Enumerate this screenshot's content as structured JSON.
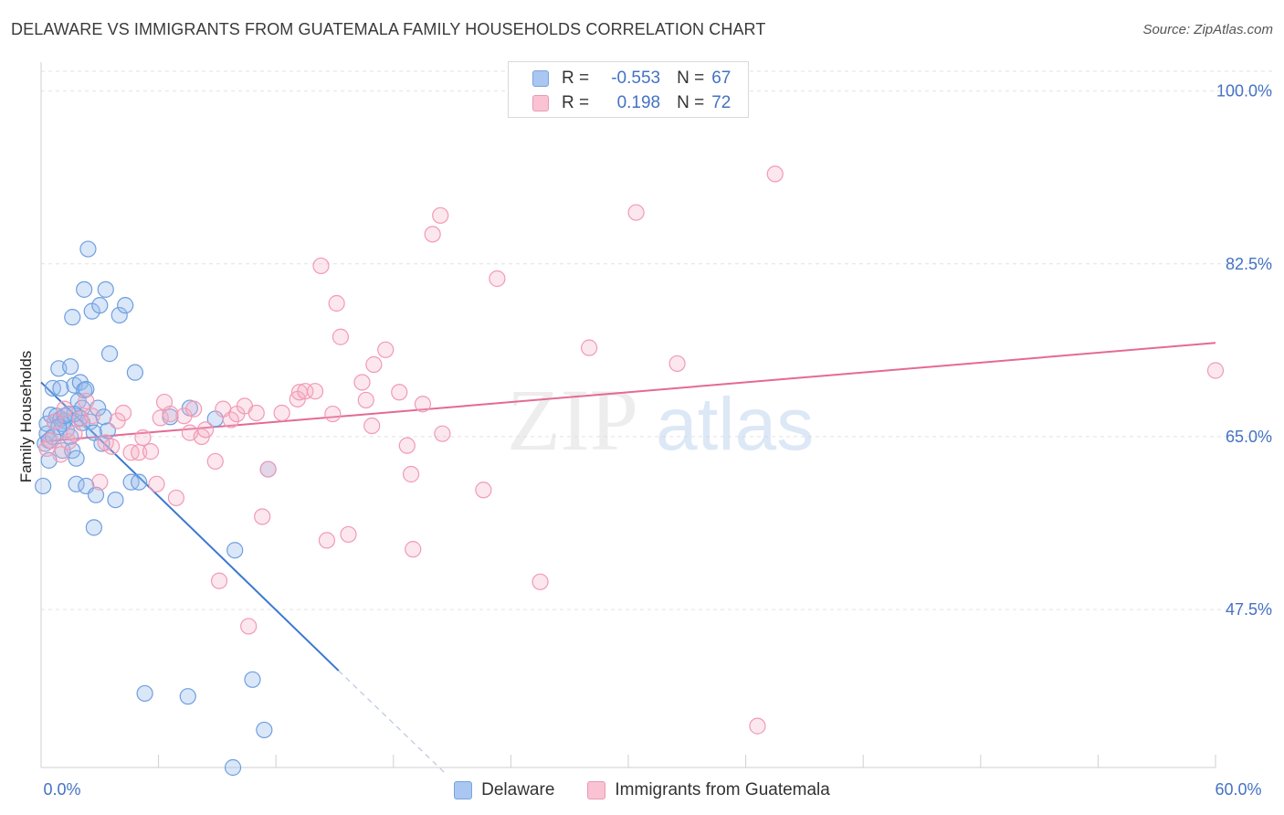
{
  "title": "DELAWARE VS IMMIGRANTS FROM GUATEMALA FAMILY HOUSEHOLDS CORRELATION CHART",
  "source": "Source: ZipAtlas.com",
  "watermark": {
    "zip": "ZIP",
    "atlas": "atlas"
  },
  "legend_top": {
    "rows": [
      {
        "r_label": "R =",
        "r_value": "-0.553",
        "n_label": "N =",
        "n_value": "67",
        "color": "#a9c7f0",
        "border": "#7aa3dd"
      },
      {
        "r_label": "R =",
        "r_value": "0.198",
        "n_label": "N =",
        "n_value": "72",
        "color": "#f9c3d3",
        "border": "#e79ab3"
      }
    ]
  },
  "legend_bottom": {
    "delaware": "Delaware",
    "guatemala": "Immigrants from Guatemala"
  },
  "chart_data": {
    "type": "scatter",
    "ylabel": "Family Households",
    "xlim": [
      0,
      60
    ],
    "ylim": [
      31.5,
      102
    ],
    "x_tick_labels": [
      {
        "value": 0,
        "label": "0.0%"
      },
      {
        "value": 60,
        "label": "60.0%"
      }
    ],
    "y_tick_labels": [
      {
        "value": 100,
        "label": "100.0%"
      },
      {
        "value": 82.5,
        "label": "82.5%"
      },
      {
        "value": 65,
        "label": "65.0%"
      },
      {
        "value": 47.5,
        "label": "47.5%"
      }
    ],
    "series": [
      {
        "name": "Delaware",
        "color": "#6f9fe0",
        "trend": {
          "x0": 0,
          "y0": 70.5,
          "x1": 15.2,
          "y1": 41.3,
          "dashed_to_x": 20.6,
          "dashed_to_y": 31.0
        },
        "points": [
          [
            0.1,
            60.0
          ],
          [
            0.2,
            64.3
          ],
          [
            0.3,
            65.3
          ],
          [
            0.3,
            66.3
          ],
          [
            0.4,
            62.6
          ],
          [
            0.4,
            64.6
          ],
          [
            0.5,
            67.2
          ],
          [
            0.6,
            69.9
          ],
          [
            0.7,
            66.5
          ],
          [
            0.8,
            67.1
          ],
          [
            0.9,
            71.9
          ],
          [
            1.0,
            69.9
          ],
          [
            1.0,
            66.8
          ],
          [
            1.1,
            63.6
          ],
          [
            1.2,
            66.6
          ],
          [
            1.3,
            65.7
          ],
          [
            1.4,
            67.3
          ],
          [
            1.5,
            65.0
          ],
          [
            1.5,
            72.1
          ],
          [
            1.6,
            63.6
          ],
          [
            1.6,
            77.1
          ],
          [
            1.7,
            70.2
          ],
          [
            1.8,
            62.8
          ],
          [
            1.8,
            60.2
          ],
          [
            1.9,
            68.6
          ],
          [
            2.0,
            66.9
          ],
          [
            2.0,
            70.5
          ],
          [
            2.1,
            67.9
          ],
          [
            2.2,
            69.7
          ],
          [
            2.2,
            79.9
          ],
          [
            2.3,
            69.8
          ],
          [
            2.3,
            60.0
          ],
          [
            2.4,
            84.0
          ],
          [
            2.5,
            66.5
          ],
          [
            2.6,
            77.7
          ],
          [
            2.7,
            55.8
          ],
          [
            2.8,
            59.1
          ],
          [
            2.9,
            67.9
          ],
          [
            3.0,
            78.3
          ],
          [
            3.1,
            64.3
          ],
          [
            3.2,
            67.0
          ],
          [
            3.3,
            79.9
          ],
          [
            3.4,
            65.6
          ],
          [
            3.5,
            73.4
          ],
          [
            3.8,
            58.6
          ],
          [
            4.0,
            77.3
          ],
          [
            4.3,
            78.3
          ],
          [
            4.6,
            60.4
          ],
          [
            4.8,
            71.5
          ],
          [
            5.0,
            60.4
          ],
          [
            5.3,
            39.0
          ],
          [
            7.5,
            38.7
          ],
          [
            7.6,
            67.9
          ],
          [
            8.9,
            66.8
          ],
          [
            9.8,
            31.5
          ],
          [
            9.9,
            53.5
          ],
          [
            10.8,
            40.4
          ],
          [
            11.4,
            35.3
          ],
          [
            11.6,
            61.7
          ],
          [
            6.6,
            67.0
          ],
          [
            1.1,
            66.3
          ],
          [
            0.9,
            66.0
          ],
          [
            2.1,
            66.4
          ],
          [
            1.7,
            67.3
          ],
          [
            0.6,
            65.0
          ],
          [
            2.7,
            65.4
          ],
          [
            1.2,
            67.1
          ]
        ]
      },
      {
        "name": "Immigrants from Guatemala",
        "color": "#f29ab4",
        "trend": {
          "x0": 0,
          "y0": 64.5,
          "x1": 60,
          "y1": 74.5
        },
        "points": [
          [
            0.3,
            63.8
          ],
          [
            0.5,
            64.6
          ],
          [
            0.7,
            66.5
          ],
          [
            1.0,
            63.2
          ],
          [
            1.2,
            67.8
          ],
          [
            1.4,
            64.5
          ],
          [
            1.7,
            65.3
          ],
          [
            2.0,
            66.8
          ],
          [
            2.3,
            68.6
          ],
          [
            2.6,
            67.1
          ],
          [
            3.0,
            60.4
          ],
          [
            3.3,
            64.4
          ],
          [
            3.6,
            64.0
          ],
          [
            3.9,
            66.6
          ],
          [
            4.2,
            67.4
          ],
          [
            4.6,
            63.4
          ],
          [
            5.0,
            63.4
          ],
          [
            5.2,
            64.9
          ],
          [
            5.6,
            63.5
          ],
          [
            5.9,
            60.2
          ],
          [
            6.1,
            66.9
          ],
          [
            6.3,
            68.5
          ],
          [
            6.6,
            67.3
          ],
          [
            6.9,
            58.8
          ],
          [
            7.3,
            67.1
          ],
          [
            7.6,
            65.4
          ],
          [
            7.8,
            67.8
          ],
          [
            8.2,
            65.0
          ],
          [
            8.4,
            65.7
          ],
          [
            8.9,
            62.5
          ],
          [
            9.1,
            50.4
          ],
          [
            9.3,
            67.8
          ],
          [
            9.7,
            66.7
          ],
          [
            10.0,
            67.3
          ],
          [
            10.4,
            68.1
          ],
          [
            10.6,
            45.8
          ],
          [
            11.0,
            67.4
          ],
          [
            11.3,
            56.9
          ],
          [
            11.6,
            61.7
          ],
          [
            12.3,
            67.4
          ],
          [
            13.1,
            68.8
          ],
          [
            13.2,
            69.5
          ],
          [
            13.5,
            69.6
          ],
          [
            14.0,
            69.6
          ],
          [
            14.3,
            82.3
          ],
          [
            14.6,
            54.5
          ],
          [
            14.9,
            67.3
          ],
          [
            15.1,
            78.5
          ],
          [
            15.3,
            75.1
          ],
          [
            15.7,
            55.1
          ],
          [
            16.4,
            70.5
          ],
          [
            16.6,
            68.7
          ],
          [
            16.9,
            66.1
          ],
          [
            17.0,
            72.3
          ],
          [
            17.6,
            73.8
          ],
          [
            18.3,
            69.5
          ],
          [
            18.7,
            64.1
          ],
          [
            18.9,
            61.2
          ],
          [
            19.0,
            53.6
          ],
          [
            19.5,
            68.3
          ],
          [
            20.0,
            85.5
          ],
          [
            20.4,
            87.4
          ],
          [
            20.5,
            65.3
          ],
          [
            22.6,
            59.6
          ],
          [
            23.3,
            81.0
          ],
          [
            25.5,
            50.3
          ],
          [
            28.0,
            74.0
          ],
          [
            30.4,
            87.7
          ],
          [
            32.5,
            72.4
          ],
          [
            36.6,
            35.7
          ],
          [
            37.5,
            91.6
          ],
          [
            60.0,
            71.7
          ]
        ]
      }
    ]
  }
}
